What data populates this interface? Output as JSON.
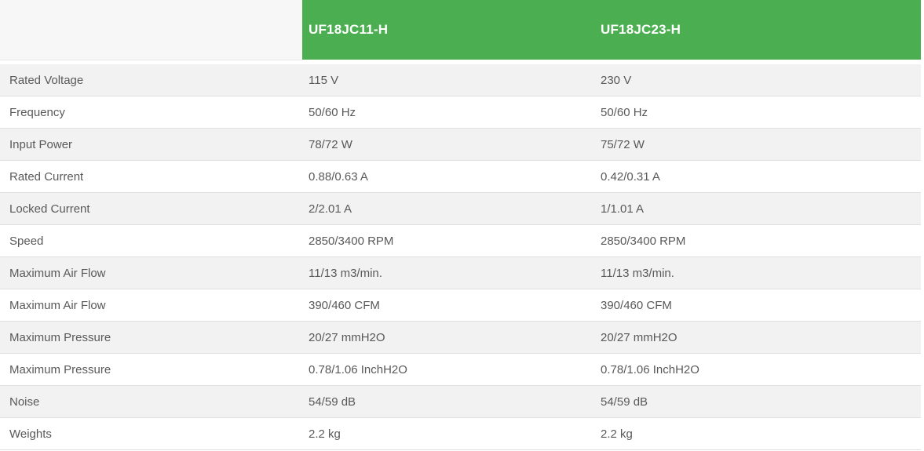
{
  "theme": {
    "header_green": "#4bae50",
    "header_text_color": "#ffffff",
    "row_alt_gray": "#f2f2f2",
    "row_white": "#ffffff",
    "corner_bg": "#f7f7f7",
    "border_color": "#dfdfdf",
    "body_text_color": "#595959"
  },
  "table": {
    "column_headers": [
      "UF18JC11-H",
      "UF18JC23-H"
    ],
    "rows": [
      {
        "label": "Rated Voltage",
        "values": [
          "115 V",
          "230 V"
        ]
      },
      {
        "label": "Frequency",
        "values": [
          "50/60 Hz",
          "50/60 Hz"
        ]
      },
      {
        "label": "Input Power",
        "values": [
          "78/72 W",
          "75/72 W"
        ]
      },
      {
        "label": "Rated Current",
        "values": [
          "0.88/0.63 A",
          "0.42/0.31 A"
        ]
      },
      {
        "label": "Locked Current",
        "values": [
          "2/2.01 A",
          "1/1.01 A"
        ]
      },
      {
        "label": "Speed",
        "values": [
          "2850/3400 RPM",
          "2850/3400 RPM"
        ]
      },
      {
        "label": "Maximum Air Flow",
        "values": [
          "11/13 m3/min.",
          "11/13 m3/min."
        ]
      },
      {
        "label": "Maximum Air Flow",
        "values": [
          "390/460 CFM",
          "390/460 CFM"
        ]
      },
      {
        "label": "Maximum Pressure",
        "values": [
          "20/27 mmH2O",
          "20/27 mmH2O"
        ]
      },
      {
        "label": "Maximum Pressure",
        "values": [
          "0.78/1.06 InchH2O",
          "0.78/1.06 InchH2O"
        ]
      },
      {
        "label": "Noise",
        "values": [
          "54/59 dB",
          "54/59 dB"
        ]
      },
      {
        "label": "Weights",
        "values": [
          "2.2 kg",
          "2.2 kg"
        ]
      }
    ]
  }
}
